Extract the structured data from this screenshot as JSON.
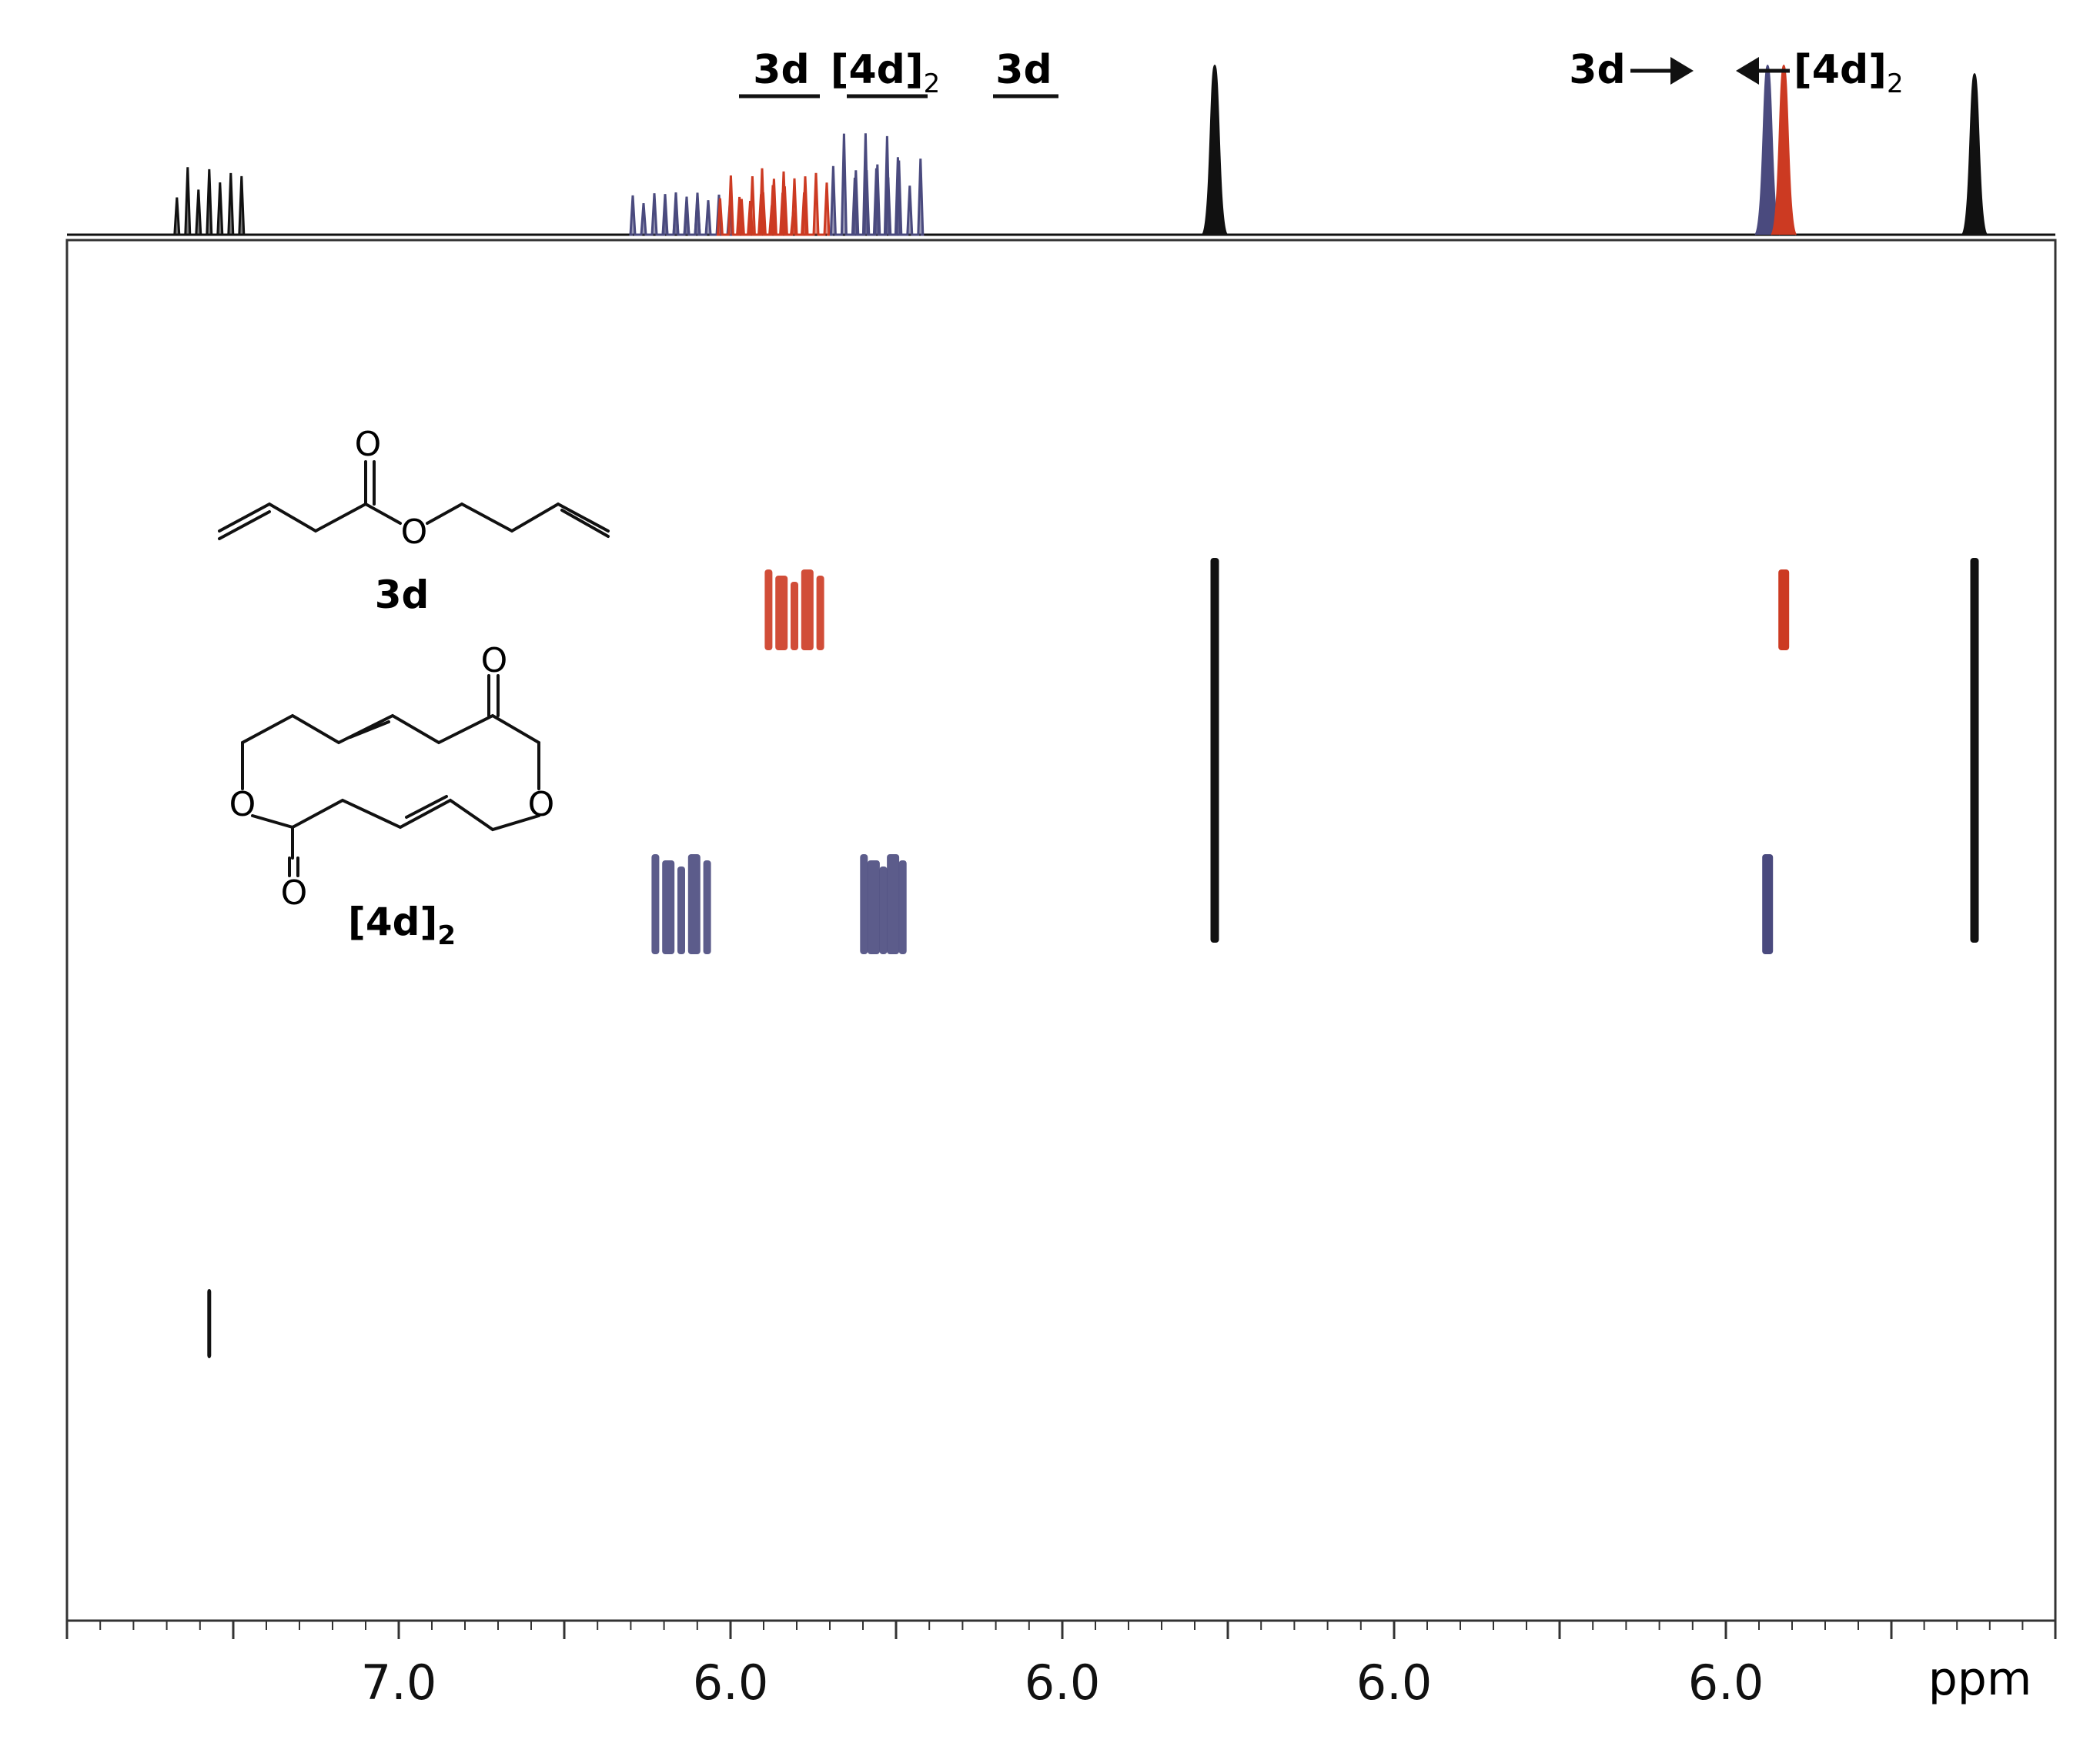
{
  "chart_data": {
    "type": "heatmap",
    "subtype": "2D NMR (DOSY-style) contour plot with 1D 1H projection",
    "x_axis": {
      "unit_label": "ppm",
      "tick_labels": [
        "7.0",
        "6.0",
        "6.0",
        "6.0",
        "6.0"
      ]
    },
    "grid": false,
    "legend": "none",
    "colors": {
      "3d": "#4a4a7e",
      "4d2": "#cc3a22",
      "other": "#111111"
    },
    "top_labels": {
      "g1": "3d",
      "g2_main": "[4d]",
      "g2_sub": "2",
      "g3": "3d",
      "arrow_left": "3d",
      "arrow_right_main": "[4d]",
      "arrow_right_sub": "2"
    },
    "structures": {
      "s1_label": "3d",
      "s2_label_main": "[4d]",
      "s2_label_sub": "2",
      "atom_O": "O"
    },
    "projection_peaks": [
      {
        "x": 7.26,
        "height": 0.4,
        "group": "other"
      },
      {
        "x": 5.85,
        "height": 0.25,
        "group": "3d"
      },
      {
        "x": 5.75,
        "height": 0.25,
        "group": "3d"
      },
      {
        "x": 5.58,
        "height": 0.35,
        "group": "4d2"
      },
      {
        "x": 5.52,
        "height": 0.25,
        "group": "4d2"
      },
      {
        "x": 5.45,
        "height": 0.4,
        "group": "4d2"
      },
      {
        "x": 5.23,
        "height": 0.6,
        "group": "3d"
      },
      {
        "x": 5.16,
        "height": 0.45,
        "group": "3d"
      },
      {
        "x": 4.15,
        "height": 1.0,
        "group": "other"
      },
      {
        "x": 2.44,
        "height": 1.0,
        "group": "3d"
      },
      {
        "x": 2.39,
        "height": 1.0,
        "group": "4d2"
      },
      {
        "x": 1.8,
        "height": 0.95,
        "group": "other"
      }
    ],
    "cross_peaks": [
      {
        "x_range": [
          5.55,
          5.35
        ],
        "diffusion_level": "upper",
        "group": "4d2"
      },
      {
        "x_range": [
          5.9,
          5.7
        ],
        "diffusion_level": "lower",
        "group": "3d"
      },
      {
        "x_range": [
          5.25,
          5.1
        ],
        "diffusion_level": "lower",
        "group": "3d"
      },
      {
        "x": 4.15,
        "diffusion_level": "upper-to-lower",
        "group": "other"
      },
      {
        "x": 2.39,
        "diffusion_level": "upper",
        "group": "4d2"
      },
      {
        "x": 2.44,
        "diffusion_level": "lower",
        "group": "3d"
      },
      {
        "x": 1.8,
        "diffusion_level": "upper-to-lower",
        "group": "other"
      },
      {
        "x": 7.26,
        "diffusion_level": "bottom",
        "group": "other"
      }
    ]
  }
}
